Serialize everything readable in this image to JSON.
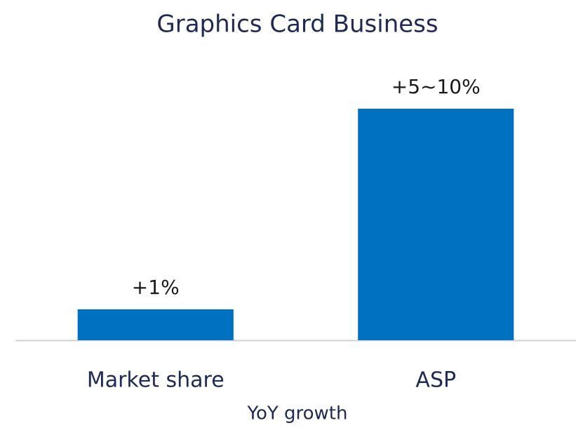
{
  "chart_data": {
    "type": "bar",
    "title": "Graphics Card Business",
    "categories": [
      "Market share",
      "ASP"
    ],
    "values": [
      1,
      7.5
    ],
    "value_labels": [
      "+1%",
      "+5~10%"
    ],
    "color": "#0070c0",
    "ylim": [
      0,
      8
    ],
    "xlabel": "YoY growth"
  }
}
